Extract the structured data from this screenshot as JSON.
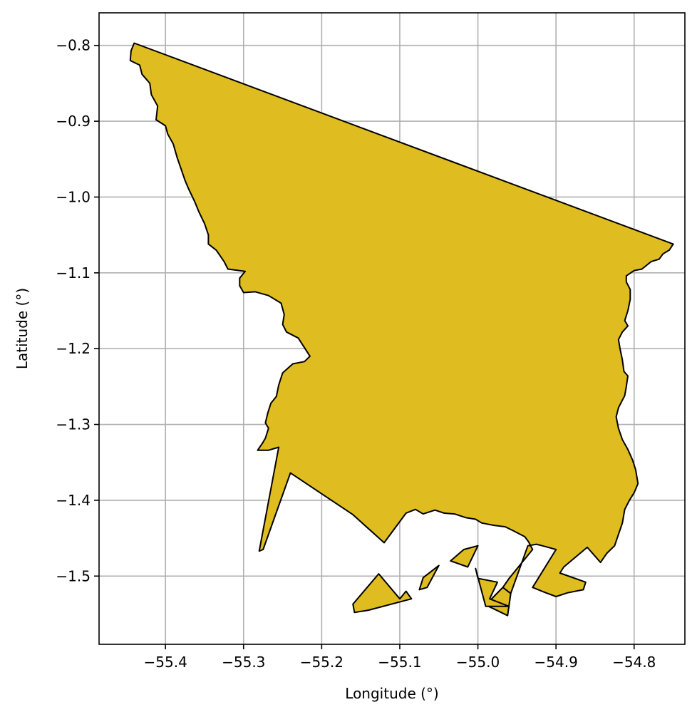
{
  "chart_data": {
    "type": "map",
    "xlabel": "Longitude (°)",
    "ylabel": "Latitude (°)",
    "xlim": [
      -55.485,
      -54.735
    ],
    "ylim": [
      -1.59,
      -0.757
    ],
    "grid": true,
    "fill_color": "#DFBD21",
    "edge_color": "#000000",
    "x_ticks": [
      -55.4,
      -55.3,
      -55.2,
      -55.1,
      -55.0,
      -54.9,
      -54.8
    ],
    "x_tick_labels": [
      "−55.4",
      "−55.3",
      "−55.2",
      "−55.1",
      "−55.0",
      "−54.9",
      "−54.8"
    ],
    "y_ticks": [
      -0.8,
      -0.9,
      -1.0,
      -1.1,
      -1.2,
      -1.3,
      -1.4,
      -1.5
    ],
    "y_tick_labels": [
      "−0.8",
      "−0.9",
      "−1.0",
      "−1.1",
      "−1.2",
      "−1.3",
      "−1.4",
      "−1.5"
    ],
    "polygons": [
      {
        "name": "main",
        "coords": [
          [
            -55.44,
            -0.797
          ],
          [
            -54.75,
            -1.062
          ],
          [
            -54.755,
            -1.07
          ],
          [
            -54.763,
            -1.075
          ],
          [
            -54.768,
            -1.082
          ],
          [
            -54.778,
            -1.085
          ],
          [
            -54.79,
            -1.095
          ],
          [
            -54.8,
            -1.097
          ],
          [
            -54.81,
            -1.104
          ],
          [
            -54.81,
            -1.112
          ],
          [
            -54.805,
            -1.122
          ],
          [
            -54.805,
            -1.135
          ],
          [
            -54.808,
            -1.15
          ],
          [
            -54.812,
            -1.163
          ],
          [
            -54.808,
            -1.17
          ],
          [
            -54.815,
            -1.178
          ],
          [
            -54.82,
            -1.188
          ],
          [
            -54.818,
            -1.2
          ],
          [
            -54.815,
            -1.215
          ],
          [
            -54.813,
            -1.23
          ],
          [
            -54.808,
            -1.236
          ],
          [
            -54.81,
            -1.25
          ],
          [
            -54.812,
            -1.262
          ],
          [
            -54.82,
            -1.278
          ],
          [
            -54.823,
            -1.29
          ],
          [
            -54.82,
            -1.305
          ],
          [
            -54.815,
            -1.32
          ],
          [
            -54.808,
            -1.333
          ],
          [
            -54.802,
            -1.347
          ],
          [
            -54.798,
            -1.36
          ],
          [
            -54.795,
            -1.378
          ],
          [
            -54.8,
            -1.39
          ],
          [
            -54.806,
            -1.4
          ],
          [
            -54.812,
            -1.412
          ],
          [
            -54.815,
            -1.43
          ],
          [
            -54.82,
            -1.445
          ],
          [
            -54.825,
            -1.46
          ],
          [
            -54.835,
            -1.47
          ],
          [
            -54.843,
            -1.482
          ],
          [
            -54.86,
            -1.462
          ],
          [
            -54.89,
            -1.488
          ],
          [
            -54.895,
            -1.496
          ],
          [
            -54.862,
            -1.508
          ],
          [
            -54.865,
            -1.518
          ],
          [
            -54.885,
            -1.522
          ],
          [
            -54.9,
            -1.527
          ],
          [
            -54.913,
            -1.522
          ],
          [
            -54.93,
            -1.515
          ],
          [
            -54.9,
            -1.465
          ],
          [
            -54.91,
            -1.462
          ],
          [
            -54.925,
            -1.458
          ],
          [
            -54.936,
            -1.46
          ],
          [
            -54.958,
            -1.523
          ],
          [
            -54.962,
            -1.552
          ],
          [
            -54.99,
            -1.538
          ],
          [
            -54.968,
            -1.515
          ],
          [
            -54.96,
            -1.503
          ],
          [
            -54.93,
            -1.465
          ],
          [
            -54.935,
            -1.455
          ],
          [
            -54.94,
            -1.448
          ],
          [
            -54.955,
            -1.44
          ],
          [
            -54.965,
            -1.435
          ],
          [
            -54.98,
            -1.433
          ],
          [
            -54.995,
            -1.43
          ],
          [
            -55.003,
            -1.425
          ],
          [
            -55.015,
            -1.423
          ],
          [
            -55.03,
            -1.418
          ],
          [
            -55.043,
            -1.417
          ],
          [
            -55.055,
            -1.413
          ],
          [
            -55.07,
            -1.418
          ],
          [
            -55.08,
            -1.412
          ],
          [
            -55.092,
            -1.417
          ],
          [
            -55.12,
            -1.456
          ],
          [
            -55.16,
            -1.419
          ],
          [
            -55.24,
            -1.364
          ],
          [
            -55.275,
            -1.465
          ],
          [
            -55.28,
            -1.467
          ],
          [
            -55.255,
            -1.33
          ],
          [
            -55.268,
            -1.334
          ],
          [
            -55.282,
            -1.334
          ],
          [
            -55.276,
            -1.325
          ],
          [
            -55.272,
            -1.318
          ],
          [
            -55.268,
            -1.305
          ],
          [
            -55.272,
            -1.298
          ],
          [
            -55.269,
            -1.285
          ],
          [
            -55.265,
            -1.272
          ],
          [
            -55.258,
            -1.263
          ],
          [
            -55.255,
            -1.248
          ],
          [
            -55.25,
            -1.232
          ],
          [
            -55.237,
            -1.22
          ],
          [
            -55.222,
            -1.217
          ],
          [
            -55.215,
            -1.21
          ],
          [
            -55.23,
            -1.186
          ],
          [
            -55.245,
            -1.178
          ],
          [
            -55.25,
            -1.168
          ],
          [
            -55.248,
            -1.155
          ],
          [
            -55.252,
            -1.14
          ],
          [
            -55.268,
            -1.13
          ],
          [
            -55.285,
            -1.125
          ],
          [
            -55.3,
            -1.126
          ],
          [
            -55.305,
            -1.117
          ],
          [
            -55.305,
            -1.107
          ],
          [
            -55.298,
            -1.098
          ],
          [
            -55.32,
            -1.095
          ],
          [
            -55.325,
            -1.085
          ],
          [
            -55.335,
            -1.07
          ],
          [
            -55.345,
            -1.062
          ],
          [
            -55.345,
            -1.05
          ],
          [
            -55.35,
            -1.035
          ],
          [
            -55.357,
            -1.02
          ],
          [
            -55.363,
            -1.005
          ],
          [
            -55.37,
            -0.99
          ],
          [
            -55.375,
            -0.978
          ],
          [
            -55.38,
            -0.963
          ],
          [
            -55.385,
            -0.948
          ],
          [
            -55.39,
            -0.93
          ],
          [
            -55.397,
            -0.917
          ],
          [
            -55.4,
            -0.906
          ],
          [
            -55.412,
            -0.898
          ],
          [
            -55.41,
            -0.88
          ],
          [
            -55.418,
            -0.865
          ],
          [
            -55.42,
            -0.85
          ],
          [
            -55.43,
            -0.838
          ],
          [
            -55.433,
            -0.826
          ],
          [
            -55.445,
            -0.82
          ],
          [
            -55.444,
            -0.807
          ]
        ]
      },
      {
        "name": "island-1",
        "coords": [
          [
            -54.962,
            -1.552
          ],
          [
            -54.99,
            -1.538
          ],
          [
            -54.968,
            -1.515
          ],
          [
            -54.958,
            -1.523
          ]
        ]
      },
      {
        "name": "island-2",
        "coords": [
          [
            -55.0,
            -1.46
          ],
          [
            -55.018,
            -1.465
          ],
          [
            -55.035,
            -1.48
          ],
          [
            -55.013,
            -1.488
          ]
        ]
      },
      {
        "name": "island-3",
        "coords": [
          [
            -55.05,
            -1.486
          ],
          [
            -55.07,
            -1.502
          ],
          [
            -55.075,
            -1.518
          ],
          [
            -55.065,
            -1.515
          ]
        ]
      },
      {
        "name": "island-4",
        "coords": [
          [
            -55.127,
            -1.497
          ],
          [
            -55.1,
            -1.53
          ],
          [
            -55.092,
            -1.52
          ],
          [
            -55.085,
            -1.53
          ],
          [
            -55.14,
            -1.545
          ],
          [
            -55.158,
            -1.548
          ],
          [
            -55.16,
            -1.537
          ]
        ]
      },
      {
        "name": "island-5",
        "coords": [
          [
            -55.0,
            -1.503
          ],
          [
            -54.975,
            -1.508
          ],
          [
            -54.985,
            -1.53
          ],
          [
            -54.96,
            -1.54
          ],
          [
            -54.99,
            -1.54
          ],
          [
            -55.003,
            -1.49
          ]
        ]
      }
    ]
  }
}
